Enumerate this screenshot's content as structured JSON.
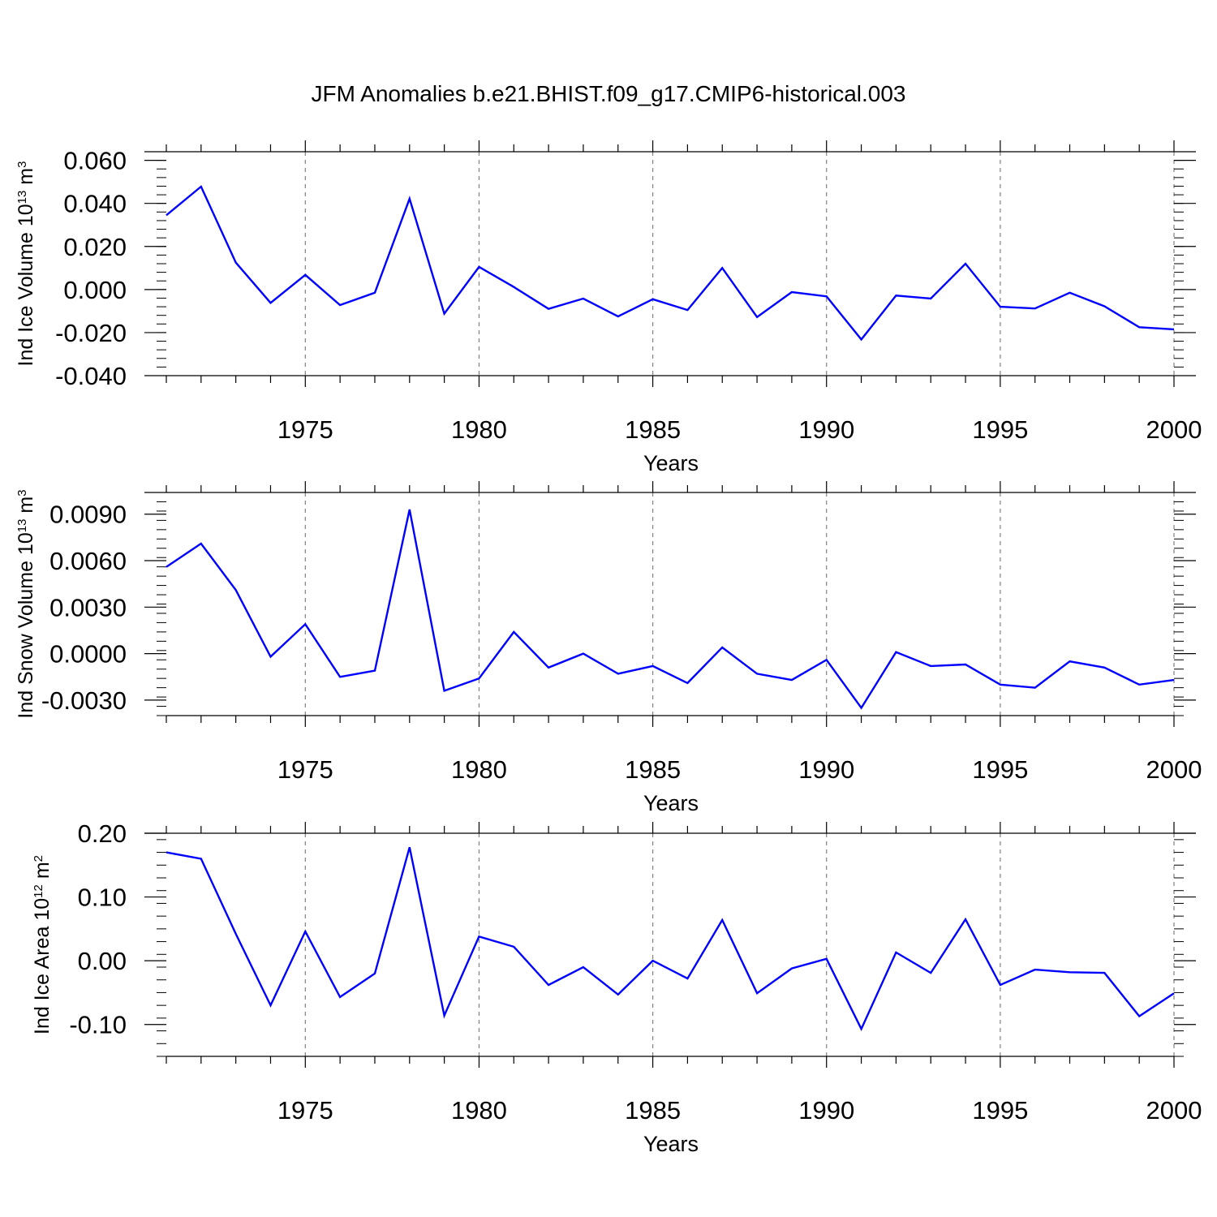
{
  "title": "JFM Anomalies b.e21.BHIST.f09_g17.CMIP6-historical.003",
  "colors": {
    "series": "#0000ff",
    "axis": "#000000",
    "grid": "#808080",
    "background": "#ffffff"
  },
  "chart_data": [
    {
      "type": "line",
      "ylabel": {
        "text": "Ind Ice Volume 10",
        "exp": "13",
        "unit": "m",
        "unit_exp": "3"
      },
      "xlabel": "Years",
      "xlim": [
        1971,
        2000
      ],
      "ylim": [
        -0.04,
        0.064
      ],
      "yticks": [
        -0.04,
        -0.02,
        0.0,
        0.02,
        0.04,
        0.06
      ],
      "ytick_labels": [
        "-0.040",
        "-0.020",
        "0.000",
        "0.020",
        "0.040",
        "0.060"
      ],
      "yminor_step": 0.004,
      "xticks": [
        1975,
        1980,
        1985,
        1990,
        1995,
        2000
      ],
      "xtick_labels": [
        "1975",
        "1980",
        "1985",
        "1990",
        "1995",
        "2000"
      ],
      "grid": "vertical dashed at major x ticks",
      "series": [
        {
          "x": [
            1971,
            1972,
            1973,
            1974,
            1975,
            1976,
            1977,
            1978,
            1979,
            1980,
            1981,
            1982,
            1983,
            1984,
            1985,
            1986,
            1987,
            1988,
            1989,
            1990,
            1991,
            1992,
            1993,
            1994,
            1995,
            1996,
            1997,
            1998,
            1999,
            2000
          ],
          "values": [
            0.0345,
            0.0478,
            0.0125,
            -0.0062,
            0.0068,
            -0.0072,
            -0.0015,
            0.0422,
            -0.0112,
            0.0105,
            0.0012,
            -0.009,
            -0.0042,
            -0.0125,
            -0.0045,
            -0.0095,
            0.01,
            -0.0128,
            -0.0012,
            -0.0032,
            -0.0232,
            -0.0028,
            -0.0042,
            0.012,
            -0.008,
            -0.0088,
            -0.0015,
            -0.0078,
            -0.0175,
            -0.0185
          ]
        }
      ]
    },
    {
      "type": "line",
      "ylabel": {
        "text": "Ind Snow Volume 10",
        "exp": "13",
        "unit": "m",
        "unit_exp": "3"
      },
      "xlabel": "Years",
      "xlim": [
        1971,
        2000
      ],
      "ylim": [
        -0.004,
        0.0104
      ],
      "yticks": [
        -0.003,
        0.0,
        0.003,
        0.006,
        0.009
      ],
      "ytick_labels": [
        "-0.0030",
        "0.0000",
        "0.0030",
        "0.0060",
        "0.0090"
      ],
      "yminor_step": 0.0006,
      "xticks": [
        1975,
        1980,
        1985,
        1990,
        1995,
        2000
      ],
      "xtick_labels": [
        "1975",
        "1980",
        "1985",
        "1990",
        "1995",
        "2000"
      ],
      "grid": "vertical dashed at major x ticks",
      "series": [
        {
          "x": [
            1971,
            1972,
            1973,
            1974,
            1975,
            1976,
            1977,
            1978,
            1979,
            1980,
            1981,
            1982,
            1983,
            1984,
            1985,
            1986,
            1987,
            1988,
            1989,
            1990,
            1991,
            1992,
            1993,
            1994,
            1995,
            1996,
            1997,
            1998,
            1999,
            2000
          ],
          "values": [
            0.0056,
            0.0071,
            0.0041,
            -0.0002,
            0.0019,
            -0.0015,
            -0.0011,
            0.0093,
            -0.0024,
            -0.0016,
            0.0014,
            -0.0009,
            0.0,
            -0.0013,
            -0.0008,
            -0.0019,
            0.0004,
            -0.0013,
            -0.0017,
            -0.0004,
            -0.0035,
            0.0001,
            -0.0008,
            -0.0007,
            -0.002,
            -0.0022,
            -0.0005,
            -0.0009,
            -0.002,
            -0.0017
          ]
        }
      ]
    },
    {
      "type": "line",
      "ylabel": {
        "text": "Ind Ice Area 10",
        "exp": "12",
        "unit": "m",
        "unit_exp": "2"
      },
      "xlabel": "Years",
      "xlim": [
        1971,
        2000
      ],
      "ylim": [
        -0.15,
        0.2
      ],
      "yticks": [
        -0.1,
        0.0,
        0.1,
        0.2
      ],
      "ytick_labels": [
        "-0.10",
        "0.00",
        "0.10",
        "0.20"
      ],
      "yminor_step": 0.02,
      "xticks": [
        1975,
        1980,
        1985,
        1990,
        1995,
        2000
      ],
      "xtick_labels": [
        "1975",
        "1980",
        "1985",
        "1990",
        "1995",
        "2000"
      ],
      "grid": "vertical dashed at major x ticks",
      "series": [
        {
          "x": [
            1971,
            1972,
            1973,
            1974,
            1975,
            1976,
            1977,
            1978,
            1979,
            1980,
            1981,
            1982,
            1983,
            1984,
            1985,
            1986,
            1987,
            1988,
            1989,
            1990,
            1991,
            1992,
            1993,
            1994,
            1995,
            1996,
            1997,
            1998,
            1999,
            2000
          ],
          "values": [
            0.17,
            0.16,
            0.042,
            -0.07,
            0.046,
            -0.057,
            -0.02,
            0.178,
            -0.086,
            0.038,
            0.022,
            -0.038,
            -0.01,
            -0.053,
            0.0,
            -0.028,
            0.064,
            -0.051,
            -0.012,
            0.003,
            -0.107,
            0.013,
            -0.019,
            0.065,
            -0.038,
            -0.014,
            -0.018,
            -0.019,
            -0.087,
            -0.051
          ]
        }
      ]
    }
  ]
}
